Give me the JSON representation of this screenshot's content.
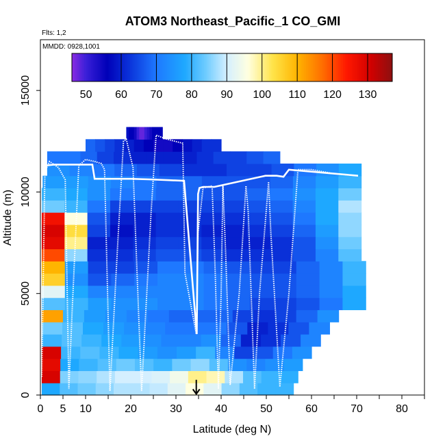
{
  "chart_data": {
    "type": "heatmap",
    "title": "ATOM3 Northeast_Pacific_1 CO_GMI",
    "subtitle_flights": "Flts: 1,2",
    "subtitle_dates": "MMDD: 0928,1001",
    "xlabel": "Latitude (deg N)",
    "ylabel": "Altitude (m)",
    "xlim": [
      0,
      85
    ],
    "ylim": [
      0,
      17500
    ],
    "x_ticks": [
      0,
      5,
      10,
      20,
      30,
      40,
      50,
      60,
      70,
      80
    ],
    "x_tick_labels": [
      "0",
      "5",
      "10",
      "20",
      "30",
      "40",
      "50",
      "60",
      "70",
      "80"
    ],
    "x_minor_ticks": [
      15,
      25,
      35,
      45,
      55,
      65,
      75,
      85
    ],
    "y_ticks": [
      0,
      5000,
      10000,
      15000
    ],
    "y_tick_labels": [
      "0",
      "5000",
      "10000",
      "15000"
    ],
    "colorbar": {
      "range": [
        46,
        137
      ],
      "ticks": [
        50,
        60,
        70,
        80,
        90,
        100,
        110,
        120,
        130
      ],
      "tick_labels": [
        "50",
        "60",
        "70",
        "80",
        "90",
        "100",
        "110",
        "120",
        "130"
      ],
      "dividers": [
        60,
        70,
        80,
        90,
        100,
        110,
        120,
        130
      ],
      "stops": [
        {
          "v": 46,
          "c": "#8a2be2"
        },
        {
          "v": 50,
          "c": "#3a1fd8"
        },
        {
          "v": 56,
          "c": "#0000b8"
        },
        {
          "v": 62,
          "c": "#0a30d8"
        },
        {
          "v": 70,
          "c": "#1e78ff"
        },
        {
          "v": 78,
          "c": "#1ea8ff"
        },
        {
          "v": 84,
          "c": "#6ecbff"
        },
        {
          "v": 90,
          "c": "#d4efff"
        },
        {
          "v": 96,
          "c": "#ffffe0"
        },
        {
          "v": 103,
          "c": "#ffe44a"
        },
        {
          "v": 110,
          "c": "#ffb400"
        },
        {
          "v": 117,
          "c": "#ff7000"
        },
        {
          "v": 124,
          "c": "#ff1800"
        },
        {
          "v": 131,
          "c": "#d00000"
        },
        {
          "v": 137,
          "c": "#8c1010"
        }
      ]
    },
    "curtain_rows": [
      {
        "alt": 0,
        "lat_min": 0.3,
        "lat_max": 56,
        "vals": [
          78,
          82,
          84,
          86,
          88,
          88,
          89,
          92,
          96,
          92,
          86,
          82,
          80,
          80
        ]
      },
      {
        "alt": 600,
        "lat_min": 0.3,
        "lat_max": 57,
        "vals": [
          130,
          85,
          86,
          88,
          90,
          90,
          91,
          94,
          100,
          98,
          88,
          82,
          80,
          79
        ]
      },
      {
        "alt": 1200,
        "lat_min": 0.3,
        "lat_max": 58,
        "vals": [
          128,
          78,
          80,
          82,
          84,
          82,
          80,
          84,
          86,
          82,
          74,
          72,
          74,
          76
        ]
      },
      {
        "alt": 1800,
        "lat_min": 0.3,
        "lat_max": 60,
        "vals": [
          130,
          80,
          82,
          80,
          78,
          76,
          74,
          76,
          80,
          72,
          64,
          66,
          70,
          74
        ]
      },
      {
        "alt": 2400,
        "lat_min": 0.3,
        "lat_max": 62,
        "vals": [
          80,
          82,
          80,
          78,
          76,
          74,
          72,
          72,
          74,
          68,
          60,
          62,
          66,
          72
        ]
      },
      {
        "alt": 3000,
        "lat_min": 0.3,
        "lat_max": 64,
        "vals": [
          84,
          82,
          78,
          76,
          74,
          72,
          70,
          70,
          70,
          66,
          60,
          62,
          66,
          72
        ]
      },
      {
        "alt": 3600,
        "lat_min": 0.3,
        "lat_max": 66,
        "vals": [
          112,
          80,
          76,
          74,
          72,
          70,
          68,
          68,
          68,
          64,
          62,
          64,
          68,
          74
        ]
      },
      {
        "alt": 4200,
        "lat_min": 0.3,
        "lat_max": 72,
        "vals": [
          82,
          80,
          76,
          74,
          74,
          72,
          72,
          70,
          68,
          64,
          64,
          66,
          70,
          78
        ]
      },
      {
        "alt": 4800,
        "lat_min": 0.3,
        "lat_max": 72,
        "vals": [
          92,
          78,
          72,
          72,
          72,
          72,
          72,
          70,
          68,
          66,
          66,
          68,
          72,
          78
        ]
      },
      {
        "alt": 5400,
        "lat_min": 0.3,
        "lat_max": 72,
        "vals": [
          106,
          74,
          66,
          68,
          70,
          72,
          72,
          70,
          68,
          66,
          66,
          68,
          72,
          80
        ]
      },
      {
        "alt": 6000,
        "lat_min": 0.3,
        "lat_max": 72,
        "vals": [
          110,
          76,
          64,
          64,
          66,
          70,
          70,
          68,
          66,
          64,
          64,
          68,
          72,
          80
        ]
      },
      {
        "alt": 6600,
        "lat_min": 0.3,
        "lat_max": 71,
        "vals": [
          120,
          86,
          62,
          62,
          64,
          66,
          66,
          64,
          62,
          62,
          62,
          66,
          72,
          82
        ]
      },
      {
        "alt": 7200,
        "lat_min": 0.3,
        "lat_max": 71,
        "vals": [
          128,
          100,
          60,
          60,
          62,
          64,
          64,
          62,
          60,
          60,
          62,
          66,
          74,
          84
        ]
      },
      {
        "alt": 7800,
        "lat_min": 0.3,
        "lat_max": 71,
        "vals": [
          130,
          104,
          64,
          58,
          60,
          62,
          62,
          60,
          60,
          62,
          64,
          68,
          76,
          86
        ]
      },
      {
        "alt": 8400,
        "lat_min": 0.3,
        "lat_max": 71,
        "vals": [
          126,
          96,
          66,
          60,
          60,
          62,
          62,
          62,
          62,
          64,
          66,
          70,
          78,
          86
        ]
      },
      {
        "alt": 9000,
        "lat_min": 0.3,
        "lat_max": 71,
        "vals": [
          84,
          80,
          70,
          64,
          64,
          64,
          64,
          64,
          64,
          66,
          68,
          72,
          78,
          88
        ]
      },
      {
        "alt": 9600,
        "lat_min": 0.3,
        "lat_max": 71,
        "vals": [
          80,
          78,
          74,
          70,
          70,
          68,
          68,
          66,
          66,
          68,
          70,
          74,
          78,
          84
        ]
      },
      {
        "alt": 10200,
        "lat_min": 0.5,
        "lat_max": 71,
        "vals": [
          76,
          76,
          74,
          72,
          70,
          68,
          68,
          66,
          66,
          66,
          68,
          72,
          76,
          80
        ]
      },
      {
        "alt": 10800,
        "lat_min": 1.5,
        "lat_max": 71,
        "vals": [
          74,
          72,
          70,
          68,
          66,
          64,
          62,
          62,
          64,
          64,
          66,
          70,
          74,
          78
        ]
      },
      {
        "alt": 11400,
        "lat_min": 1.5,
        "lat_max": 53,
        "vals": [
          70,
          70,
          68,
          64,
          62,
          60,
          60,
          60,
          60,
          62,
          64,
          64,
          66,
          68
        ]
      },
      {
        "alt": 12000,
        "lat_min": 10,
        "lat_max": 40,
        "vals": [
          68,
          66,
          64,
          62,
          60,
          58,
          56,
          54,
          54,
          56,
          58,
          60,
          62,
          62
        ]
      },
      {
        "alt": 12600,
        "lat_min": 19,
        "lat_max": 27,
        "vals": [
          58,
          56,
          56,
          54,
          50,
          48,
          48,
          50,
          52,
          54,
          56,
          56,
          56,
          56
        ]
      }
    ],
    "flight_track": [
      [
        0.3,
        0.9
      ],
      [
        1.0,
        11.0
      ],
      [
        2.0,
        11.5
      ],
      [
        4.0,
        11.2
      ],
      [
        5.5,
        10.6
      ],
      [
        6.3,
        0.3
      ],
      [
        7.0,
        4.0
      ],
      [
        8.5,
        11.3
      ],
      [
        10.0,
        11.6
      ],
      [
        12.0,
        11.5
      ],
      [
        13.5,
        11.4
      ],
      [
        14.2,
        11.1
      ],
      [
        15.4,
        0.2
      ],
      [
        17.0,
        7.0
      ],
      [
        18.4,
        12.5
      ],
      [
        19.0,
        12.6
      ],
      [
        20.5,
        11.2
      ],
      [
        22.4,
        0.2
      ],
      [
        24.5,
        9.0
      ],
      [
        25.6,
        12.8
      ],
      [
        28.0,
        12.6
      ],
      [
        31.5,
        12.4
      ],
      [
        32.0,
        6.0
      ],
      [
        34.5,
        3.0
      ],
      [
        34.9,
        8.0
      ],
      [
        36.0,
        10.2
      ],
      [
        38.0,
        10.3
      ],
      [
        38.7,
        6.0
      ],
      [
        39.4,
        0.3
      ],
      [
        40.0,
        5.0
      ],
      [
        40.4,
        10.3
      ],
      [
        41.0,
        7.0
      ],
      [
        42.0,
        0.5
      ],
      [
        44.0,
        5.0
      ],
      [
        45.5,
        10.3
      ],
      [
        46.0,
        9.0
      ],
      [
        47.4,
        0.3
      ],
      [
        48.5,
        5.0
      ],
      [
        50.5,
        10.5
      ],
      [
        51.0,
        8.0
      ],
      [
        53.0,
        0.4
      ],
      [
        55.0,
        5.0
      ],
      [
        57.0,
        11.1
      ],
      [
        60.0,
        11.1
      ],
      [
        65.0,
        10.9
      ],
      [
        70.3,
        10.8
      ]
    ],
    "track_highlight": [
      [
        0.9,
        11.3
      ],
      [
        3.0,
        11.35
      ],
      [
        6.0,
        11.35
      ],
      [
        9.0,
        11.35
      ],
      [
        11.5,
        11.35
      ],
      [
        12.0,
        10.65
      ],
      [
        15.0,
        10.65
      ],
      [
        20.0,
        10.65
      ],
      [
        24.0,
        10.62
      ],
      [
        28.5,
        10.58
      ],
      [
        31.8,
        10.55
      ],
      [
        34.6,
        3.0
      ],
      [
        34.9,
        9.9
      ],
      [
        35.2,
        10.2
      ],
      [
        36.0,
        10.25
      ],
      [
        38.5,
        10.25
      ],
      [
        49.8,
        10.8
      ],
      [
        52.3,
        10.8
      ],
      [
        53.8,
        10.75
      ],
      [
        55.0,
        11.1
      ],
      [
        70.3,
        10.8
      ]
    ],
    "arrow_marker": {
      "lat": 34.5,
      "alt_top": 0.75,
      "alt_bottom": 0.05
    }
  }
}
